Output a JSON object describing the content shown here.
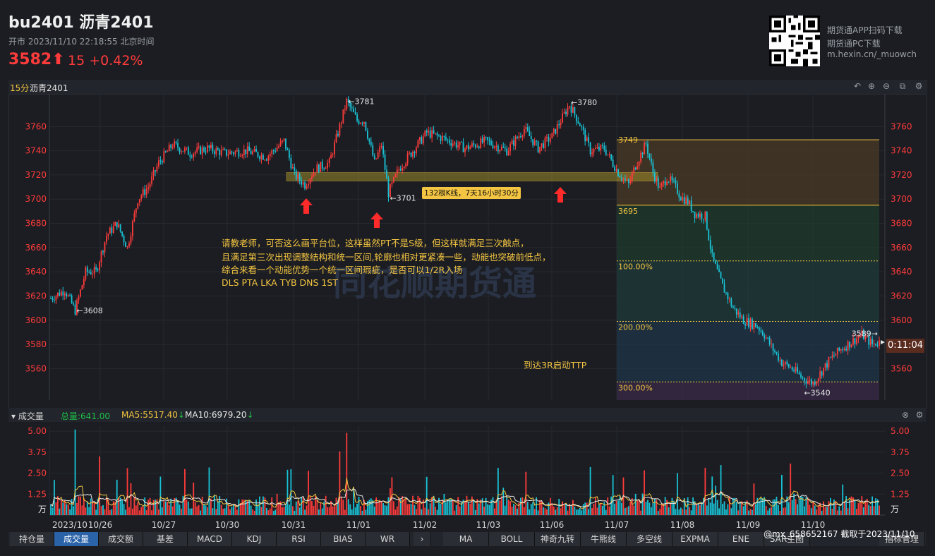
{
  "header": {
    "title": "bu2401 沥青2401",
    "status": "开市  2023/11/10 22:18:55 北京时间",
    "price": "3582",
    "change": "15  +0.42%"
  },
  "promo": {
    "line1": "期货通APP扫码下载",
    "line2": "期货通PC下载",
    "line3": "m.hexin.cn/_muowch"
  },
  "chart": {
    "period": "15分",
    "symbol": "沥青2401",
    "watermark": "同花顺期货通",
    "countdown": "0:11:04",
    "annotation_lines": [
      "请教老师，可否这么画平台位，这样虽然PT不是S级，但这样就满足三次触点，",
      "且满足第三次出现调整结构和统一区间,轮廓也相对更紧凑一些，动能也突破前低点，",
      "综合来看一个动能优势一个统一区间瑕疵，是否可以1/2R入场",
      "DLS PTA LKA TYB DNS 1ST"
    ],
    "ttp_note": "到达3R启动TTP",
    "box_label": "132根K线，7天16小时30分",
    "price_marks": [
      "3781",
      "3780",
      "3701",
      "3608",
      "3749",
      "3695",
      "3589",
      "3540"
    ],
    "fib_labels": [
      "100.00%",
      "200.00%",
      "300.00%"
    ]
  },
  "volume": {
    "title": "成交量",
    "total": "总量:641.00",
    "ma5": "MA5:5517.40",
    "ma10": "MA10:6979.20",
    "unit": "万"
  },
  "tabs": [
    "持仓量",
    "成交量",
    "成交额",
    "基差",
    "MACD",
    "KDJ",
    "RSI",
    "BIAS",
    "WR"
  ],
  "tools": [
    "MA",
    "BOLL",
    "神奇九转",
    "牛熊线",
    "多空线",
    "EXPMA",
    "ENE",
    "SAR主图"
  ],
  "tool_button": "指标管理",
  "footer_note": "@mx_658652167  截取于2023/11/10",
  "colors": {
    "up": "#ff3b3b",
    "down": "#19c3d6",
    "accent": "#f4c542"
  },
  "chart_data": {
    "type": "candlestick",
    "y_ticks": [
      3560,
      3580,
      3600,
      3620,
      3640,
      3660,
      3680,
      3700,
      3720,
      3740,
      3760
    ],
    "ylim": [
      3534,
      3787
    ],
    "x_labels": [
      "2023/10",
      "10/26",
      "10/27",
      "10/30",
      "10/31",
      "11/01",
      "11/02",
      "11/03",
      "11/06",
      "11/07",
      "11/08",
      "11/09",
      "11/10"
    ],
    "path": [
      [
        0,
        3618
      ],
      [
        8,
        3625
      ],
      [
        14,
        3608
      ],
      [
        20,
        3640
      ],
      [
        26,
        3640
      ],
      [
        32,
        3670
      ],
      [
        38,
        3680
      ],
      [
        44,
        3660
      ],
      [
        50,
        3700
      ],
      [
        56,
        3710
      ],
      [
        62,
        3730
      ],
      [
        70,
        3745
      ],
      [
        80,
        3738
      ],
      [
        90,
        3742
      ],
      [
        100,
        3738
      ],
      [
        112,
        3740
      ],
      [
        124,
        3735
      ],
      [
        134,
        3748
      ],
      [
        140,
        3720
      ],
      [
        146,
        3712
      ],
      [
        152,
        3725
      ],
      [
        160,
        3730
      ],
      [
        166,
        3760
      ],
      [
        170,
        3781
      ],
      [
        176,
        3765
      ],
      [
        180,
        3765
      ],
      [
        186,
        3730
      ],
      [
        190,
        3745
      ],
      [
        194,
        3705
      ],
      [
        200,
        3725
      ],
      [
        208,
        3740
      ],
      [
        216,
        3755
      ],
      [
        226,
        3750
      ],
      [
        238,
        3742
      ],
      [
        250,
        3748
      ],
      [
        262,
        3740
      ],
      [
        272,
        3758
      ],
      [
        280,
        3742
      ],
      [
        288,
        3752
      ],
      [
        298,
        3778
      ],
      [
        304,
        3762
      ],
      [
        310,
        3740
      ],
      [
        318,
        3742
      ],
      [
        326,
        3722
      ],
      [
        332,
        3712
      ],
      [
        336,
        3728
      ],
      [
        342,
        3746
      ],
      [
        346,
        3722
      ],
      [
        350,
        3708
      ],
      [
        354,
        3718
      ],
      [
        358,
        3712
      ],
      [
        362,
        3702
      ],
      [
        366,
        3698
      ],
      [
        370,
        3688
      ],
      [
        376,
        3686
      ],
      [
        380,
        3652
      ],
      [
        386,
        3628
      ],
      [
        392,
        3610
      ],
      [
        398,
        3600
      ],
      [
        406,
        3595
      ],
      [
        410,
        3588
      ],
      [
        414,
        3578
      ],
      [
        420,
        3565
      ],
      [
        426,
        3560
      ],
      [
        432,
        3552
      ],
      [
        438,
        3548
      ],
      [
        442,
        3556
      ],
      [
        448,
        3568
      ],
      [
        454,
        3576
      ],
      [
        460,
        3582
      ],
      [
        466,
        3588
      ],
      [
        472,
        3580
      ],
      [
        476,
        3582
      ]
    ],
    "fib_levels": [
      {
        "price": 3749,
        "label": "3749"
      },
      {
        "price": 3695,
        "label": "3695"
      },
      {
        "price": 3649,
        "label": "100.00%"
      },
      {
        "price": 3599,
        "label": "200.00%"
      },
      {
        "price": 3549,
        "label": "300.00%"
      }
    ],
    "platform": [
      3715,
      3722
    ],
    "volume_ticks": [
      1.25,
      2.5,
      3.75,
      5.0
    ],
    "volume_unit": "万"
  }
}
